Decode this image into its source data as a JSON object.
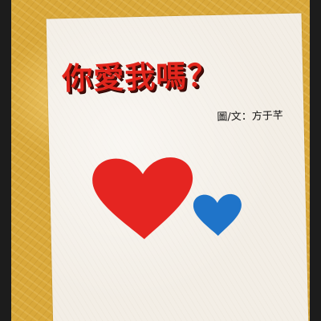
{
  "cover": {
    "title": "你愛我嗎？",
    "credit": "圖/文：方于芊"
  },
  "colors": {
    "background": "#d9a83a",
    "card": "#f3eee6",
    "title": "#e2261d",
    "big_heart": "#e52521",
    "small_heart": "#1f74c9"
  }
}
